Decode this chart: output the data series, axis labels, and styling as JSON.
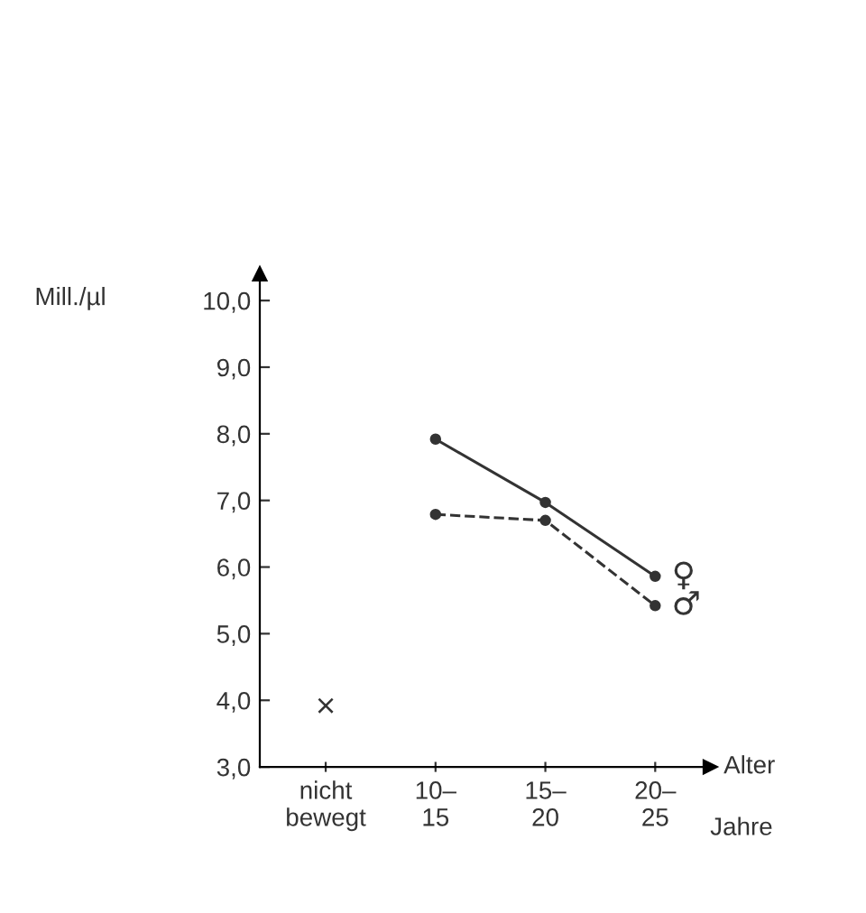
{
  "chart_data": {
    "type": "line",
    "ylabel": "Mill./µl",
    "xlabel": "Alter",
    "annotations": [
      "Jahre"
    ],
    "categories": [
      "nicht\nbewegt",
      "10–\n15",
      "15–\n20",
      "20–\n25"
    ],
    "series": [
      {
        "name": "♀",
        "color": "#333333",
        "values": [
          null,
          7.92,
          6.97,
          5.86
        ],
        "marker": "circle",
        "line_style": "solid"
      },
      {
        "name": "♂",
        "color": "#333333",
        "values": [
          null,
          6.79,
          6.7,
          5.42
        ],
        "marker": "circle",
        "line_style": "dashed"
      },
      {
        "type": "scatter",
        "color": "#333333",
        "values": [
          3.92,
          null,
          null,
          null
        ],
        "marker": "cross"
      }
    ],
    "ylim": [
      3,
      10.4
    ],
    "yticks": [
      {
        "value": 3,
        "label": "3,0"
      },
      {
        "value": 4,
        "label": "4,0"
      },
      {
        "value": 5,
        "label": "5,0"
      },
      {
        "value": 6,
        "label": "6,0"
      },
      {
        "value": 7,
        "label": "7,0"
      },
      {
        "value": 8,
        "label": "8,0"
      },
      {
        "value": 9,
        "label": "9,0"
      },
      {
        "value": 10,
        "label": "10,0"
      }
    ],
    "grid": false,
    "legend": false
  }
}
